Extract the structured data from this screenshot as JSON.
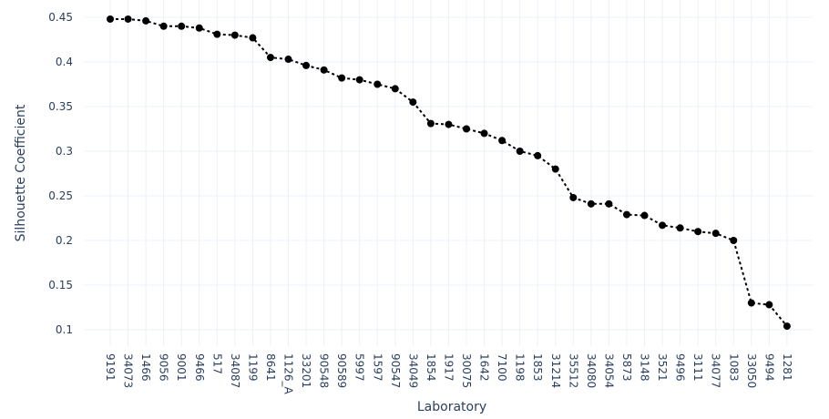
{
  "chart_data": {
    "type": "line",
    "xlabel": "Laboratory",
    "ylabel": "Silhouette Coefficient",
    "ylim": [
      0.095,
      0.455
    ],
    "y_ticks": [
      0.1,
      0.15,
      0.2,
      0.25,
      0.3,
      0.35,
      0.4,
      0.45
    ],
    "y_tick_labels": [
      "0.1",
      "0.15",
      "0.2",
      "0.25",
      "0.3",
      "0.35",
      "0.4",
      "0.45"
    ],
    "grid": true,
    "line_color": "#000000",
    "line_style": "dotted",
    "markers": true,
    "categories": [
      "9191",
      "34073",
      "1466",
      "9056",
      "9001",
      "9466",
      "517",
      "34087",
      "1199",
      "8641",
      "1126_A",
      "33201",
      "90548",
      "90589",
      "5997",
      "1597",
      "90547",
      "34049",
      "1854",
      "1917",
      "30075",
      "1642",
      "7100",
      "1198",
      "1853",
      "31214",
      "35512",
      "34080",
      "34054",
      "5873",
      "3148",
      "3521",
      "9496",
      "3111",
      "34077",
      "1083",
      "33050",
      "9494",
      "1281"
    ],
    "values": [
      0.448,
      0.448,
      0.446,
      0.44,
      0.44,
      0.438,
      0.431,
      0.43,
      0.427,
      0.405,
      0.403,
      0.396,
      0.391,
      0.382,
      0.38,
      0.375,
      0.37,
      0.355,
      0.331,
      0.33,
      0.325,
      0.32,
      0.312,
      0.3,
      0.295,
      0.28,
      0.248,
      0.241,
      0.241,
      0.229,
      0.228,
      0.217,
      0.214,
      0.21,
      0.208,
      0.2,
      0.13,
      0.128,
      0.104
    ]
  }
}
